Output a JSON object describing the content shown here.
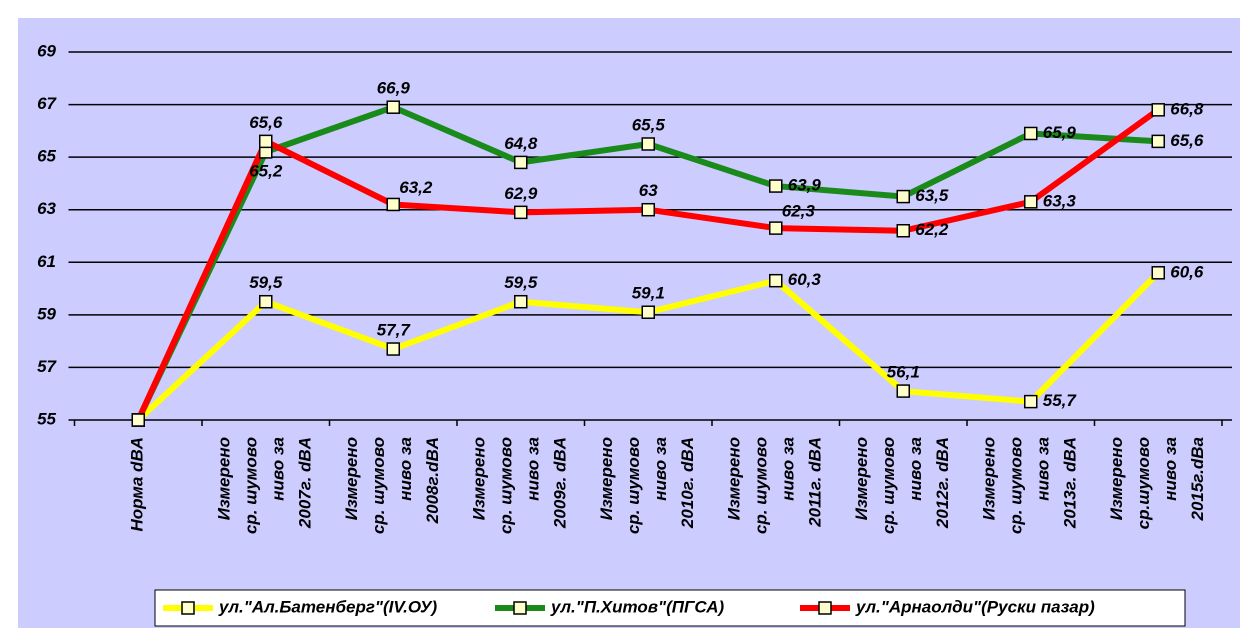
{
  "chart_data": {
    "type": "line",
    "categories": [
      "Норма dBA",
      "Измерено\nср. шумово\nниво за\n2007г. dBA",
      "Измерено\nср. шумово\nниво за\n2008г.dBA",
      "Измерено\nср. шумово\nниво за\n2009г. dBA",
      "Измерено\nср. шумово\nниво за\n2010г. dBA",
      "Измерено\nср. шумово\nниво за\n2011г. dBA",
      "Измерено\nср. шумово\nниво за\n2012г. dBA",
      "Измерено\nср. шумово\nниво за\n2013г. dBA",
      "Измерено\nср.шумово\nниво за\n2015г.dBa"
    ],
    "series": [
      {
        "name": "ул.\"Ал.Батенберг\"(IV.ОУ)",
        "color": "#ffff00",
        "values": [
          55,
          59.5,
          57.7,
          59.5,
          59.1,
          60.3,
          56.1,
          55.7,
          60.6
        ],
        "value_labels": [
          null,
          "59,5",
          "57,7",
          "59,5",
          "59,1",
          "60,3",
          "56,1",
          "55,7",
          "60,6"
        ]
      },
      {
        "name": "ул.\"П.Хитов\"(ПГСА)",
        "color": "#1a8a1a",
        "values": [
          55,
          65.2,
          66.9,
          64.8,
          65.5,
          63.9,
          63.5,
          65.9,
          65.6
        ],
        "value_labels": [
          null,
          "65,2",
          "66,9",
          "64,8",
          "65,5",
          "63,9",
          "63,5",
          "65,9",
          "65,6"
        ]
      },
      {
        "name": "ул.\"Арнаолди\"(Руски пазар)",
        "color": "#ff0000",
        "values": [
          55,
          65.6,
          63.2,
          62.9,
          63,
          62.3,
          62.2,
          63.3,
          66.8
        ],
        "value_labels": [
          null,
          "65,6",
          "63,2",
          "62,9",
          "63",
          "62,3",
          "62,2",
          "63,3",
          "66,8"
        ]
      }
    ],
    "ylim": [
      55,
      69
    ],
    "yticks": [
      55,
      57,
      59,
      61,
      63,
      65,
      67,
      69
    ],
    "grid": true,
    "legend": "bottom"
  }
}
